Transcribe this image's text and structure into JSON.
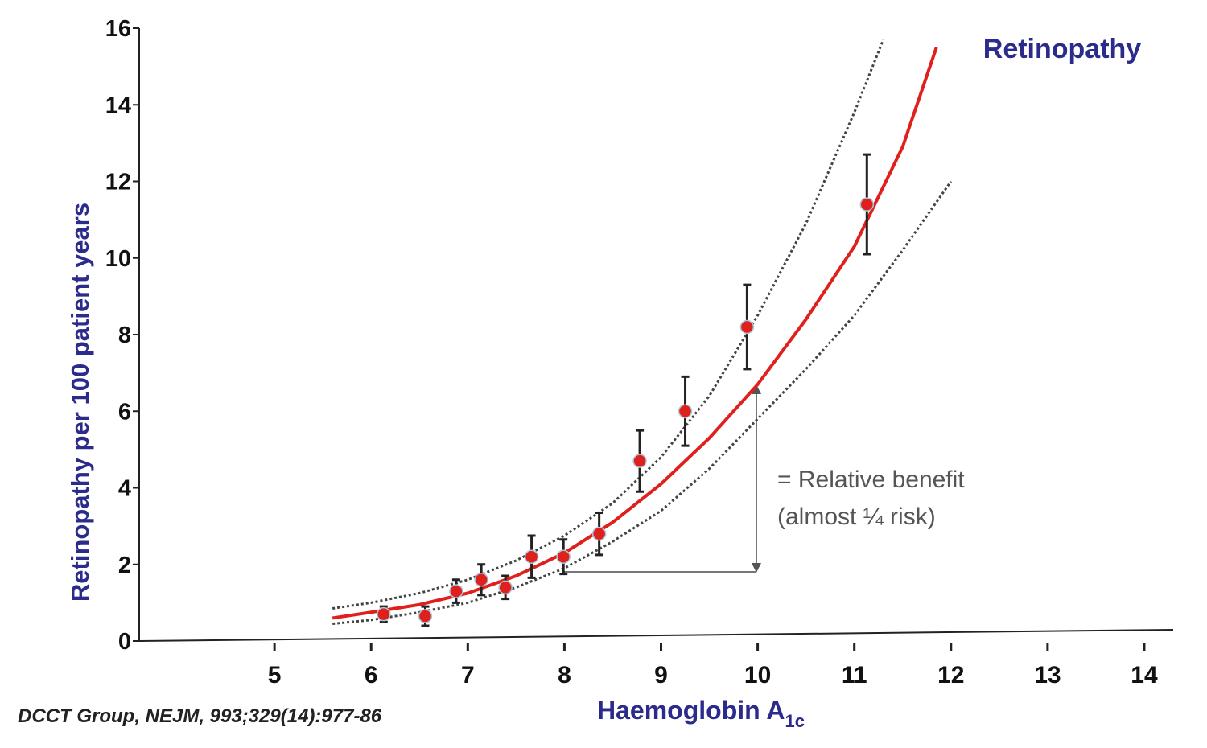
{
  "chart_data": {
    "type": "scatter",
    "title": "Retinopathy",
    "x_label": "Haemoglobin A",
    "x_label_subscript": "1c",
    "y_label": "Retinopathy per 100 patient years",
    "source": "DCCT Group, NEJM, 993;329(14):977-86",
    "annotation": [
      "= Relative benefit",
      "(almost ¼ risk)"
    ],
    "x": [
      6.13,
      6.56,
      6.88,
      7.14,
      7.39,
      7.66,
      7.99,
      8.36,
      8.78,
      9.25,
      9.89,
      11.13
    ],
    "values": [
      0.7,
      0.65,
      1.3,
      1.6,
      1.4,
      2.2,
      2.2,
      2.8,
      4.7,
      6.0,
      8.2,
      11.4
    ],
    "errors": [
      0.2,
      0.25,
      0.3,
      0.4,
      0.3,
      0.55,
      0.45,
      0.55,
      0.8,
      0.9,
      1.1,
      1.3
    ],
    "color": "#e0201c",
    "curves": [
      {
        "style": "solid",
        "color": "#e0201c",
        "x": [
          5.6,
          6,
          6.5,
          7,
          7.5,
          8,
          8.5,
          9,
          9.5,
          10,
          10.5,
          11,
          11.5,
          11.85
        ],
        "values": [
          0.6,
          0.75,
          0.95,
          1.25,
          1.7,
          2.3,
          3.1,
          4.1,
          5.3,
          6.7,
          8.4,
          10.3,
          12.9,
          15.5
        ]
      },
      {
        "style": "dotted",
        "color": "#444444",
        "x": [
          5.6,
          6,
          6.5,
          7,
          7.5,
          8,
          8.5,
          9,
          9.5,
          10,
          10.5,
          11,
          11.3
        ],
        "values": [
          0.85,
          1.0,
          1.25,
          1.6,
          2.1,
          2.75,
          3.6,
          4.8,
          6.4,
          8.5,
          10.9,
          13.8,
          15.7
        ]
      },
      {
        "style": "dotted",
        "color": "#444444",
        "x": [
          5.6,
          6,
          6.5,
          7,
          7.5,
          8,
          8.5,
          9,
          9.5,
          10,
          10.5,
          11,
          11.5,
          12
        ],
        "values": [
          0.45,
          0.55,
          0.75,
          1.0,
          1.4,
          1.9,
          2.6,
          3.4,
          4.5,
          5.8,
          7.1,
          8.5,
          10.2,
          12.0
        ]
      }
    ],
    "xlim": [
      3.6,
      14.3
    ],
    "ylim": [
      0,
      16
    ],
    "xticks": [
      5,
      6,
      7,
      8,
      9,
      10,
      11,
      12,
      13,
      14
    ],
    "yticks": [
      0,
      2,
      4,
      6,
      8,
      10,
      12,
      14,
      16
    ]
  }
}
